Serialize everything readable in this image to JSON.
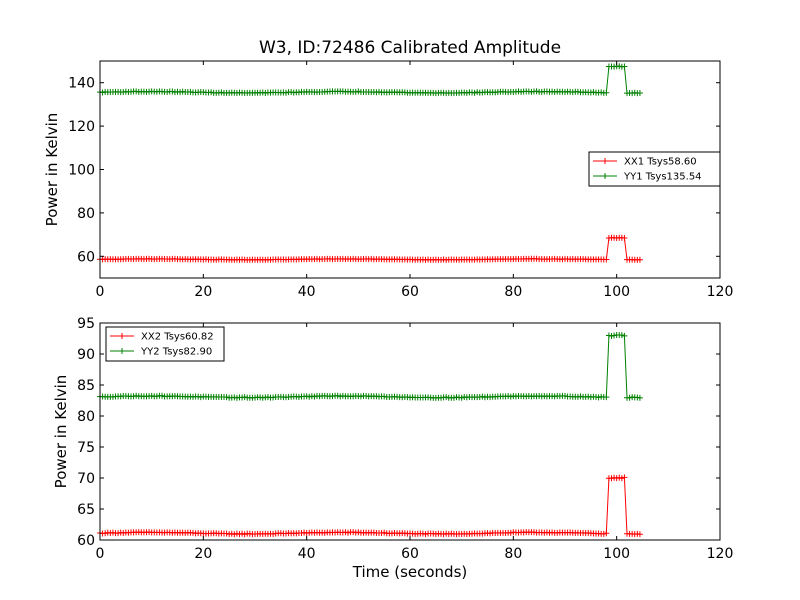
{
  "figure": {
    "title": "W3, ID:72486 Calibrated Amplitude"
  },
  "chart_data": [
    {
      "type": "line",
      "title": "W3, ID:72486 Calibrated Amplitude",
      "xlabel": "",
      "ylabel": "Power in Kelvin",
      "xlim": [
        0,
        120
      ],
      "ylim": [
        50,
        150
      ],
      "xticks": [
        0,
        20,
        40,
        60,
        80,
        100,
        120
      ],
      "yticks": [
        60,
        80,
        100,
        120,
        140
      ],
      "grid": false,
      "legend_position": "center-right",
      "series": [
        {
          "name": "XX1 Tsys58.60",
          "color": "#ff0000",
          "marker": "+",
          "x_range": [
            0,
            104.5
          ],
          "baseline": 58.6,
          "wobble": 0.3,
          "step_start": 98.5,
          "step_end": 101.5,
          "step_value": 68.5
        },
        {
          "name": "YY1 Tsys135.54",
          "color": "#008000",
          "marker": "+",
          "x_range": [
            0,
            104.5
          ],
          "baseline": 135.6,
          "wobble": 0.5,
          "step_start": 98.5,
          "step_end": 101.5,
          "step_value": 147.5
        }
      ]
    },
    {
      "type": "line",
      "title": "",
      "xlabel": "Time (seconds)",
      "ylabel": "Power in Kelvin",
      "xlim": [
        0,
        120
      ],
      "ylim": [
        60,
        95
      ],
      "xticks": [
        0,
        20,
        40,
        60,
        80,
        100,
        120
      ],
      "yticks": [
        60,
        65,
        70,
        75,
        80,
        85,
        90,
        95
      ],
      "grid": false,
      "legend_position": "upper-left",
      "series": [
        {
          "name": "XX2 Tsys60.82",
          "color": "#ff0000",
          "marker": "+",
          "x_range": [
            0,
            104.5
          ],
          "baseline": 61.1,
          "wobble": 0.2,
          "step_start": 98.5,
          "step_end": 101.5,
          "step_value": 70.0
        },
        {
          "name": "YY2 Tsys82.90",
          "color": "#008000",
          "marker": "+",
          "x_range": [
            0,
            104.5
          ],
          "baseline": 83.1,
          "wobble": 0.2,
          "step_start": 98.5,
          "step_end": 101.5,
          "step_value": 93.0
        }
      ]
    }
  ]
}
